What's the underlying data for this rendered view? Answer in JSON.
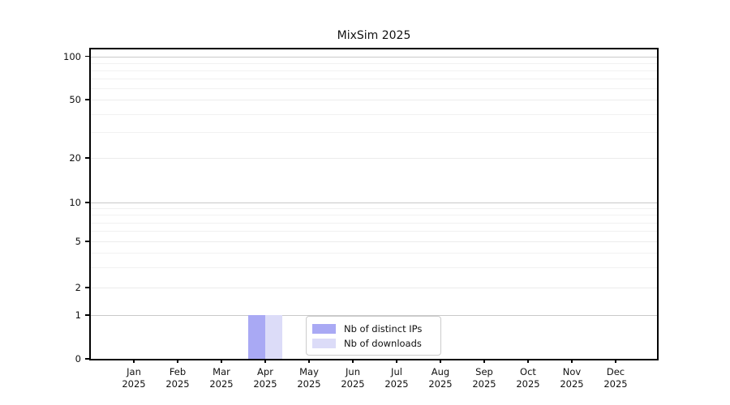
{
  "chart_data": {
    "type": "bar",
    "title": "MixSim 2025",
    "yscale": "symlog",
    "ylim": [
      0,
      100
    ],
    "grid": true,
    "legend_position": "lower center",
    "y_ticks": [
      0,
      1,
      2,
      5,
      10,
      20,
      50,
      100
    ],
    "x_categories": [
      {
        "month": "Jan",
        "year": "2025"
      },
      {
        "month": "Feb",
        "year": "2025"
      },
      {
        "month": "Mar",
        "year": "2025"
      },
      {
        "month": "Apr",
        "year": "2025"
      },
      {
        "month": "May",
        "year": "2025"
      },
      {
        "month": "Jun",
        "year": "2025"
      },
      {
        "month": "Jul",
        "year": "2025"
      },
      {
        "month": "Aug",
        "year": "2025"
      },
      {
        "month": "Sep",
        "year": "2025"
      },
      {
        "month": "Oct",
        "year": "2025"
      },
      {
        "month": "Nov",
        "year": "2025"
      },
      {
        "month": "Dec",
        "year": "2025"
      }
    ],
    "series": [
      {
        "name": "Nb of distinct IPs",
        "color": "#a9a9f4",
        "values": [
          0,
          0,
          0,
          1,
          0,
          0,
          0,
          0,
          0,
          0,
          0,
          0
        ]
      },
      {
        "name": "Nb of downloads",
        "color": "#dcdcf8",
        "values": [
          0,
          0,
          0,
          1,
          0,
          0,
          0,
          0,
          0,
          0,
          0,
          0
        ]
      }
    ]
  }
}
